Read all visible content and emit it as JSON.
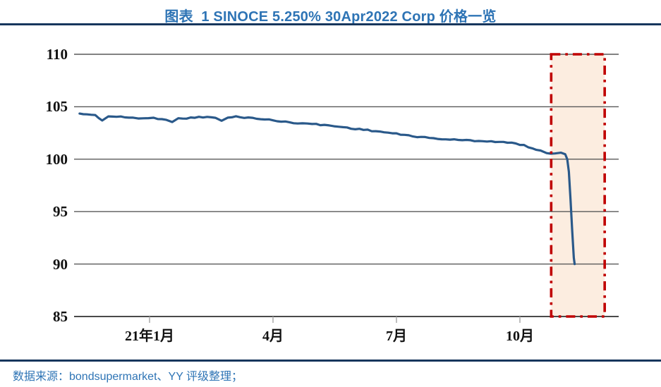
{
  "header": {
    "title": "图表  1 SINOCE 5.250% 30Apr2022 Corp 价格一览"
  },
  "footer": {
    "source": "数据来源：bondsupermarket、YY 评级整理；"
  },
  "colors": {
    "accent_blue": "#2E74B5",
    "divider_navy": "#17365D",
    "price_line": "#2A598A",
    "highlight_border": "#C00000",
    "highlight_fill": "#FCEBDD",
    "gridline": "#595959",
    "axis_line": "#4A4A4A",
    "tick_mark": "#A9A9A9",
    "label_text": "#111111"
  },
  "chart_data": {
    "type": "line",
    "title": "图表 1 SINOCE 5.250% 30Apr2022 Corp 价格一览",
    "xlabel": "",
    "ylabel": "",
    "ylim": [
      85,
      110
    ],
    "grid": "horizontal",
    "legend": "none",
    "y_ticks": [
      110,
      105,
      100,
      95,
      90,
      85
    ],
    "x_ticks": [
      {
        "t": 0,
        "label": "21年1月"
      },
      {
        "t": 3,
        "label": "4月"
      },
      {
        "t": 6,
        "label": "7月"
      },
      {
        "t": 9,
        "label": "10月"
      }
    ],
    "x_unit": "months_from_jan_2021",
    "series": [
      {
        "name": "SINOCE 5.250% 30Apr2022 Corp price",
        "points": [
          [
            -1.7,
            104.35
          ],
          [
            -1.52,
            104.28
          ],
          [
            -1.32,
            104.18
          ],
          [
            -1.15,
            103.72
          ],
          [
            -1.0,
            104.08
          ],
          [
            -0.7,
            104.02
          ],
          [
            -0.4,
            103.95
          ],
          [
            -0.15,
            103.88
          ],
          [
            0.1,
            103.92
          ],
          [
            0.4,
            103.8
          ],
          [
            0.55,
            103.58
          ],
          [
            0.7,
            103.85
          ],
          [
            1.0,
            103.95
          ],
          [
            1.3,
            104.02
          ],
          [
            1.6,
            103.95
          ],
          [
            1.75,
            103.65
          ],
          [
            1.9,
            103.95
          ],
          [
            2.1,
            104.05
          ],
          [
            2.4,
            103.95
          ],
          [
            2.7,
            103.85
          ],
          [
            3.0,
            103.7
          ],
          [
            3.3,
            103.55
          ],
          [
            3.6,
            103.45
          ],
          [
            3.95,
            103.35
          ],
          [
            4.25,
            103.25
          ],
          [
            4.6,
            103.1
          ],
          [
            5.0,
            102.9
          ],
          [
            5.4,
            102.72
          ],
          [
            5.8,
            102.52
          ],
          [
            6.2,
            102.3
          ],
          [
            6.6,
            102.1
          ],
          [
            7.0,
            101.95
          ],
          [
            7.4,
            101.85
          ],
          [
            7.8,
            101.78
          ],
          [
            8.2,
            101.72
          ],
          [
            8.6,
            101.62
          ],
          [
            8.9,
            101.48
          ],
          [
            9.1,
            101.32
          ],
          [
            9.3,
            101.05
          ],
          [
            9.5,
            100.78
          ],
          [
            9.65,
            100.6
          ],
          [
            9.85,
            100.55
          ],
          [
            10.0,
            100.62
          ],
          [
            10.1,
            100.48
          ],
          [
            10.15,
            100.0
          ],
          [
            10.19,
            98.8
          ],
          [
            10.23,
            96.2
          ],
          [
            10.27,
            93.2
          ],
          [
            10.31,
            90.6
          ],
          [
            10.33,
            90.0
          ]
        ]
      }
    ],
    "highlight_box": {
      "t_start": 9.76,
      "t_end": 11.06,
      "value_top": 110,
      "value_bottom": 85,
      "style": "red dash-dot rectangle with light peach fill"
    }
  }
}
